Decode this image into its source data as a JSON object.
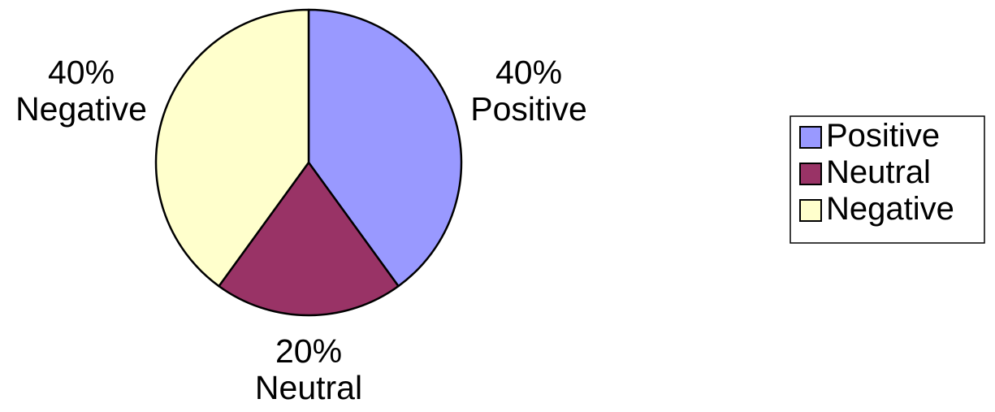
{
  "chart_data": {
    "type": "pie",
    "title": "",
    "categories": [
      "Positive",
      "Neutral",
      "Negative"
    ],
    "values": [
      40,
      20,
      40
    ],
    "unit": "%",
    "colors": [
      "#9999ff",
      "#993366",
      "#ffffcc"
    ],
    "data_labels": [
      {
        "percent": "40%",
        "name": "Positive"
      },
      {
        "percent": "20%",
        "name": "Neutral"
      },
      {
        "percent": "40%",
        "name": "Negative"
      }
    ],
    "legend": {
      "placement": "right",
      "items": [
        "Positive",
        "Neutral",
        "Negative"
      ]
    },
    "start_angle": "12 o'clock",
    "direction": "clockwise"
  }
}
